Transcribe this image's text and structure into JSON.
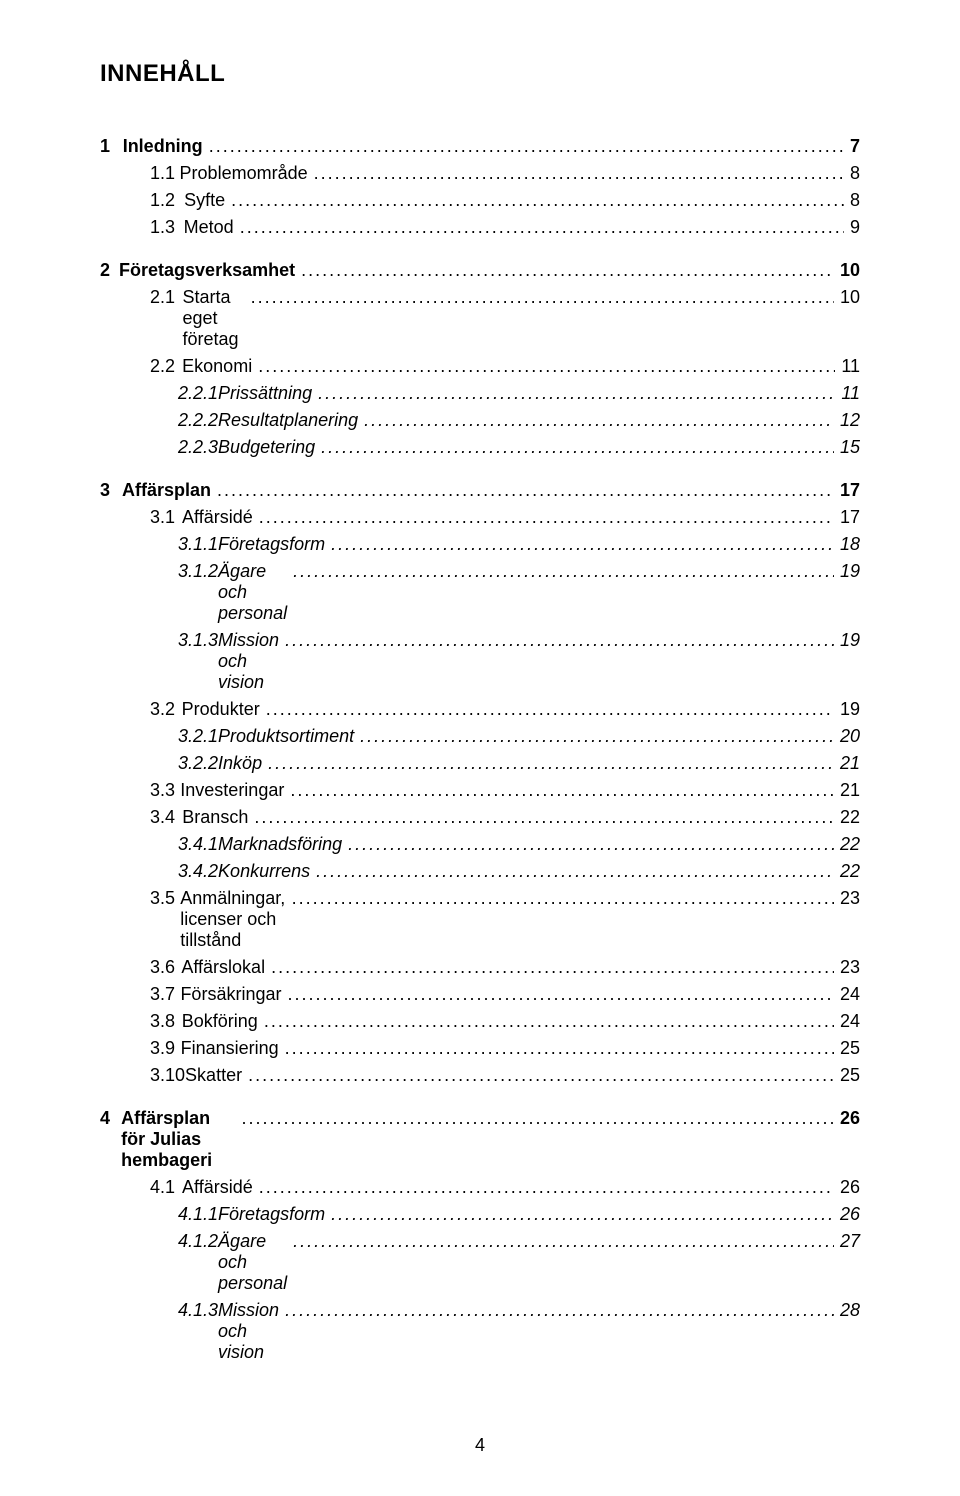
{
  "title": "INNEHÅLL",
  "page_number": "4",
  "toc": [
    {
      "level": 1,
      "number": "1",
      "label": "Inledning",
      "page": "7"
    },
    {
      "level": 2,
      "number": "1.1",
      "label": "Problemområde",
      "page": "8"
    },
    {
      "level": 2,
      "number": "1.2",
      "label": "Syfte",
      "page": "8"
    },
    {
      "level": 2,
      "number": "1.3",
      "label": "Metod",
      "page": "9"
    },
    {
      "level": 1,
      "number": "2",
      "label": "Företagsverksamhet",
      "page": "10"
    },
    {
      "level": 2,
      "number": "2.1",
      "label": "Starta eget företag",
      "page": "10"
    },
    {
      "level": 2,
      "number": "2.2",
      "label": "Ekonomi",
      "page": "11"
    },
    {
      "level": 3,
      "number": "2.2.1",
      "label": "Prissättning",
      "page": "11"
    },
    {
      "level": 3,
      "number": "2.2.2",
      "label": "Resultatplanering",
      "page": "12"
    },
    {
      "level": 3,
      "number": "2.2.3",
      "label": "Budgetering",
      "page": "15"
    },
    {
      "level": 1,
      "number": "3",
      "label": "Affärsplan",
      "page": "17"
    },
    {
      "level": 2,
      "number": "3.1",
      "label": "Affärsidé",
      "page": "17"
    },
    {
      "level": 3,
      "number": "3.1.1",
      "label": "Företagsform",
      "page": "18"
    },
    {
      "level": 3,
      "number": "3.1.2",
      "label": "Ägare och personal",
      "page": "19"
    },
    {
      "level": 3,
      "number": "3.1.3",
      "label": "Mission och vision",
      "page": "19"
    },
    {
      "level": 2,
      "number": "3.2",
      "label": "Produkter",
      "page": "19"
    },
    {
      "level": 3,
      "number": "3.2.1",
      "label": "Produktsortiment",
      "page": "20"
    },
    {
      "level": 3,
      "number": "3.2.2",
      "label": "Inköp",
      "page": "21"
    },
    {
      "level": 2,
      "number": "3.3",
      "label": "Investeringar",
      "page": "21"
    },
    {
      "level": 2,
      "number": "3.4",
      "label": "Bransch",
      "page": "22"
    },
    {
      "level": 3,
      "number": "3.4.1",
      "label": "Marknadsföring",
      "page": "22"
    },
    {
      "level": 3,
      "number": "3.4.2",
      "label": "Konkurrens",
      "page": "22"
    },
    {
      "level": 2,
      "number": "3.5",
      "label": "Anmälningar, licenser och tillstånd",
      "page": "23"
    },
    {
      "level": 2,
      "number": "3.6",
      "label": "Affärslokal",
      "page": "23"
    },
    {
      "level": 2,
      "number": "3.7",
      "label": "Försäkringar",
      "page": "24"
    },
    {
      "level": 2,
      "number": "3.8",
      "label": "Bokföring",
      "page": "24"
    },
    {
      "level": 2,
      "number": "3.9",
      "label": "Finansiering",
      "page": "25"
    },
    {
      "level": 2,
      "number": "3.10",
      "label": "Skatter",
      "page": "25"
    },
    {
      "level": 1,
      "number": "4",
      "label": "Affärsplan för Julias hembageri",
      "page": "26"
    },
    {
      "level": 2,
      "number": "4.1",
      "label": "Affärsidé",
      "page": "26"
    },
    {
      "level": 3,
      "number": "4.1.1",
      "label": "Företagsform",
      "page": "26"
    },
    {
      "level": 3,
      "number": "4.1.2",
      "label": "Ägare och personal",
      "page": "27"
    },
    {
      "level": 3,
      "number": "4.1.3",
      "label": "Mission och vision",
      "page": "28"
    }
  ]
}
